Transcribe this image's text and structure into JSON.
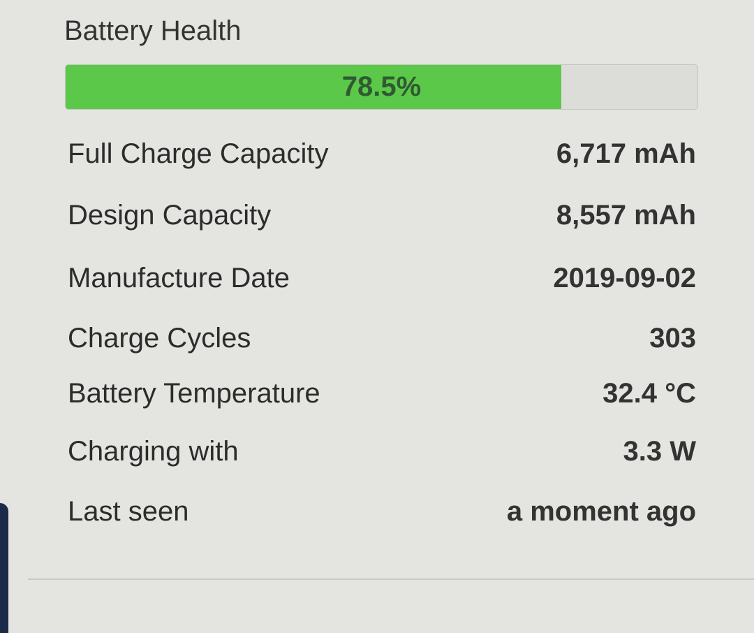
{
  "title": "Battery Health",
  "health": {
    "percent": 78.5,
    "label": "78.5%",
    "fill_color": "#5cc84a"
  },
  "rows": [
    {
      "label": "Full Charge Capacity",
      "value": "6,717 mAh"
    },
    {
      "label": "Design Capacity",
      "value": "8,557 mAh"
    },
    {
      "label": "Manufacture Date",
      "value": "2019-09-02"
    },
    {
      "label": "Charge Cycles",
      "value": "303"
    },
    {
      "label": "Battery Temperature",
      "value": "32.4 °C"
    },
    {
      "label": "Charging with",
      "value": "3.3 W"
    },
    {
      "label": "Last seen",
      "value": "a moment ago"
    }
  ]
}
